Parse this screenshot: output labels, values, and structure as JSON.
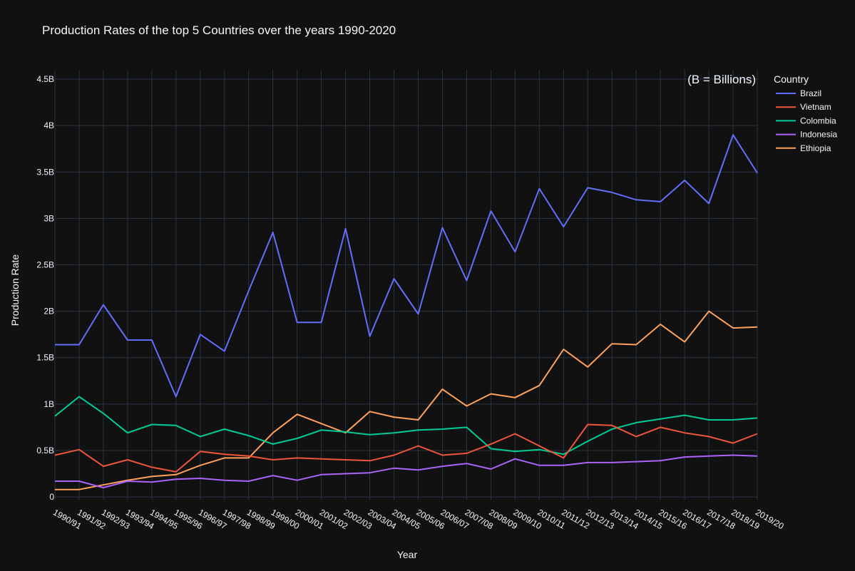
{
  "chart_data": {
    "type": "line",
    "title": "Production Rates of the top 5 Countries over the years 1990-2020",
    "xlabel": "Year",
    "ylabel": "Production Rate",
    "annotation": "(B = Billions)",
    "legend_title": "Country",
    "legend_position": "top-right",
    "grid": true,
    "ylim": [
      -0.03,
      4.6
    ],
    "yticks": [
      {
        "value": 0,
        "label": "0"
      },
      {
        "value": 0.5,
        "label": "0.5B"
      },
      {
        "value": 1,
        "label": "1B"
      },
      {
        "value": 1.5,
        "label": "1.5B"
      },
      {
        "value": 2,
        "label": "2B"
      },
      {
        "value": 2.5,
        "label": "2.5B"
      },
      {
        "value": 3,
        "label": "3B"
      },
      {
        "value": 3.5,
        "label": "3.5B"
      },
      {
        "value": 4,
        "label": "4B"
      },
      {
        "value": 4.5,
        "label": "4.5B"
      }
    ],
    "categories": [
      "1990/91",
      "1991/92",
      "1992/93",
      "1993/94",
      "1994/95",
      "1995/96",
      "1996/97",
      "1997/98",
      "1998/99",
      "1999/00",
      "2000/01",
      "2001/02",
      "2002/03",
      "2003/04",
      "2004/05",
      "2005/06",
      "2006/07",
      "2007/08",
      "2008/09",
      "2009/10",
      "2010/11",
      "2011/12",
      "2012/13",
      "2013/14",
      "2014/15",
      "2015/16",
      "2016/17",
      "2017/18",
      "2018/19",
      "2019/20"
    ],
    "series": [
      {
        "name": "Brazil",
        "color": "#636efa",
        "values": [
          1.64,
          1.64,
          2.07,
          1.69,
          1.69,
          1.08,
          1.75,
          1.57,
          2.22,
          2.85,
          1.88,
          1.88,
          2.89,
          1.73,
          2.35,
          1.97,
          2.9,
          2.33,
          3.08,
          2.64,
          3.32,
          2.91,
          3.33,
          3.28,
          3.2,
          3.18,
          3.41,
          3.16,
          3.9,
          3.49
        ]
      },
      {
        "name": "Vietnam",
        "color": "#ef553b",
        "values": [
          0.45,
          0.51,
          0.33,
          0.4,
          0.32,
          0.27,
          0.49,
          0.46,
          0.44,
          0.4,
          0.42,
          0.41,
          0.4,
          0.39,
          0.45,
          0.55,
          0.45,
          0.47,
          0.57,
          0.68,
          0.55,
          0.42,
          0.78,
          0.77,
          0.65,
          0.75,
          0.69,
          0.65,
          0.58,
          0.68
        ]
      },
      {
        "name": "Colombia",
        "color": "#00cc96",
        "values": [
          0.87,
          1.08,
          0.9,
          0.69,
          0.78,
          0.77,
          0.65,
          0.73,
          0.66,
          0.57,
          0.63,
          0.72,
          0.7,
          0.67,
          0.69,
          0.72,
          0.73,
          0.75,
          0.52,
          0.49,
          0.51,
          0.46,
          0.6,
          0.73,
          0.8,
          0.84,
          0.88,
          0.83,
          0.83,
          0.85
        ]
      },
      {
        "name": "Indonesia",
        "color": "#ab63fa",
        "values": [
          0.17,
          0.17,
          0.1,
          0.17,
          0.16,
          0.19,
          0.2,
          0.18,
          0.17,
          0.23,
          0.18,
          0.24,
          0.25,
          0.26,
          0.31,
          0.29,
          0.33,
          0.36,
          0.3,
          0.41,
          0.34,
          0.34,
          0.37,
          0.37,
          0.38,
          0.39,
          0.43,
          0.44,
          0.45,
          0.44
        ]
      },
      {
        "name": "Ethiopia",
        "color": "#ffa15a",
        "values": [
          0.08,
          0.08,
          0.13,
          0.18,
          0.22,
          0.24,
          0.34,
          0.42,
          0.42,
          0.69,
          0.89,
          0.79,
          0.69,
          0.92,
          0.86,
          0.83,
          1.16,
          0.98,
          1.11,
          1.07,
          1.2,
          1.59,
          1.4,
          1.65,
          1.64,
          1.86,
          1.67,
          2.0,
          1.82,
          1.83
        ]
      }
    ]
  }
}
